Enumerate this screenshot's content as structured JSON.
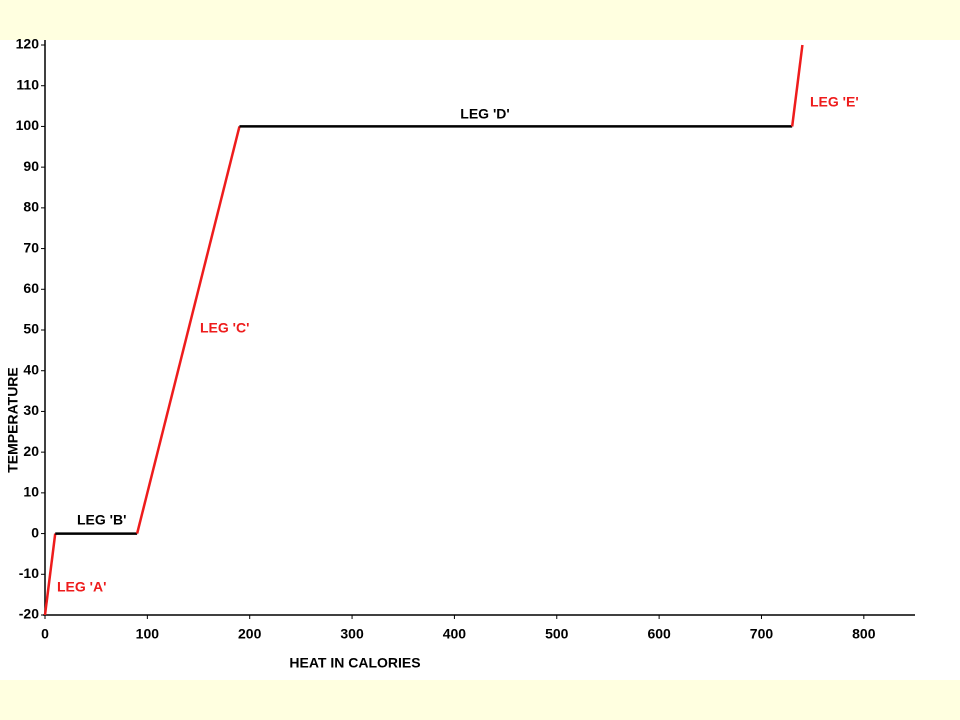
{
  "chart_data": {
    "type": "line",
    "x_label": "HEAT IN CALORIES",
    "y_label": "TEMPERATURE",
    "xlim": [
      0,
      850
    ],
    "ylim": [
      -20,
      120
    ],
    "xticks": [
      0,
      100,
      200,
      300,
      400,
      500,
      600,
      700,
      800
    ],
    "yticks": [
      -20,
      -10,
      0,
      10,
      20,
      30,
      40,
      50,
      60,
      70,
      80,
      90,
      100,
      110,
      120
    ],
    "series": [
      {
        "name": "LEG 'A'",
        "color": "#ee1c1c",
        "x": [
          0,
          10
        ],
        "values": [
          -20,
          0
        ]
      },
      {
        "name": "LEG 'B'",
        "color": "#000000",
        "x": [
          10,
          90
        ],
        "values": [
          0,
          0
        ]
      },
      {
        "name": "LEG 'C'",
        "color": "#ee1c1c",
        "x": [
          90,
          190
        ],
        "values": [
          0,
          100
        ]
      },
      {
        "name": "LEG 'D'",
        "color": "#000000",
        "x": [
          190,
          730
        ],
        "values": [
          100,
          100
        ]
      },
      {
        "name": "LEG 'E'",
        "color": "#ee1c1c",
        "x": [
          730,
          740
        ],
        "values": [
          100,
          120
        ]
      }
    ]
  }
}
